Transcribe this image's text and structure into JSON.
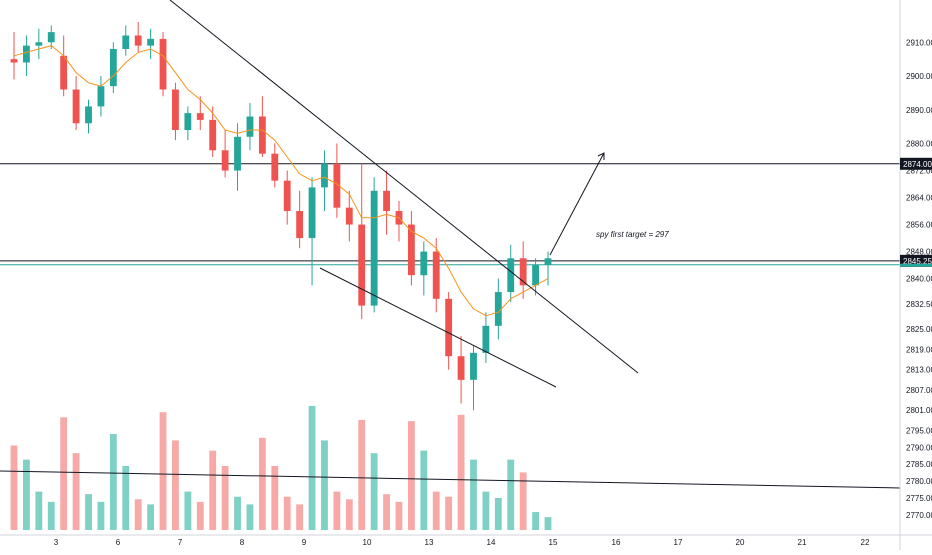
{
  "chart_data": {
    "type": "candlestick",
    "title": "",
    "xlabel": "",
    "ylabel": "",
    "ylim": [
      2767,
      2916
    ],
    "x_ticks": [
      "3",
      "6",
      "7",
      "8",
      "9",
      "10",
      "13",
      "14",
      "15",
      "16",
      "17",
      "20",
      "21",
      "22"
    ],
    "y_ticks": [
      2910.0,
      2900.0,
      2890.0,
      2880.0,
      2872.0,
      2864.0,
      2856.0,
      2848.0,
      2840.0,
      2832.5,
      2825.0,
      2819.0,
      2813.0,
      2807.0,
      2801.0,
      2795.0,
      2790.0,
      2785.0,
      2780.0,
      2775.0,
      2770.0
    ],
    "horizontal_levels": [
      {
        "price": 2874.0,
        "label": "2874.00"
      },
      {
        "price": 2845.25,
        "label": "2845.25"
      }
    ],
    "annotation": "spy first target = 297",
    "ohlc": [
      [
        2905,
        2913,
        2899,
        2904
      ],
      [
        2904,
        2912,
        2900,
        2909
      ],
      [
        2909,
        2914,
        2905,
        2910
      ],
      [
        2910,
        2915,
        2908,
        2913
      ],
      [
        2906,
        2912,
        2894,
        2896
      ],
      [
        2896,
        2900,
        2884,
        2886
      ],
      [
        2886,
        2893,
        2883,
        2891
      ],
      [
        2891,
        2900,
        2888,
        2897
      ],
      [
        2897,
        2910,
        2895,
        2908
      ],
      [
        2908,
        2915,
        2906,
        2912
      ],
      [
        2912,
        2916,
        2907,
        2909
      ],
      [
        2909,
        2914,
        2905,
        2911
      ],
      [
        2911,
        2913,
        2894,
        2896
      ],
      [
        2896,
        2898,
        2881,
        2884
      ],
      [
        2884,
        2891,
        2881,
        2889
      ],
      [
        2889,
        2894,
        2884,
        2887
      ],
      [
        2887,
        2891,
        2876,
        2878
      ],
      [
        2878,
        2884,
        2870,
        2872
      ],
      [
        2872,
        2886,
        2866,
        2882
      ],
      [
        2882,
        2892,
        2878,
        2888
      ],
      [
        2888,
        2894,
        2876,
        2877
      ],
      [
        2877,
        2880,
        2867,
        2869
      ],
      [
        2869,
        2872,
        2856,
        2860
      ],
      [
        2860,
        2866,
        2849,
        2852
      ],
      [
        2852,
        2870,
        2838,
        2867
      ],
      [
        2867,
        2878,
        2860,
        2874
      ],
      [
        2874,
        2880,
        2858,
        2861
      ],
      [
        2861,
        2866,
        2851,
        2856
      ],
      [
        2856,
        2874,
        2828,
        2832
      ],
      [
        2832,
        2870,
        2830,
        2866
      ],
      [
        2866,
        2872,
        2853,
        2860
      ],
      [
        2860,
        2863,
        2851,
        2856
      ],
      [
        2856,
        2860,
        2838,
        2841
      ],
      [
        2841,
        2851,
        2835,
        2848
      ],
      [
        2848,
        2852,
        2830,
        2834
      ],
      [
        2834,
        2836,
        2813,
        2817
      ],
      [
        2817,
        2823,
        2803,
        2810
      ],
      [
        2810,
        2820,
        2801,
        2818
      ],
      [
        2818,
        2830,
        2815,
        2826
      ],
      [
        2826,
        2840,
        2822,
        2836
      ],
      [
        2836,
        2850,
        2833,
        2846
      ],
      [
        2846,
        2851,
        2834,
        2838
      ],
      [
        2838,
        2846,
        2835,
        2844
      ],
      [
        2844,
        2848,
        2838,
        2846
      ]
    ],
    "ma": [
      2906,
      2907,
      2908,
      2909,
      2906,
      2901,
      2898,
      2897,
      2900,
      2904,
      2907,
      2908,
      2906,
      2901,
      2896,
      2893,
      2889,
      2884,
      2883,
      2884,
      2884,
      2881,
      2876,
      2871,
      2869,
      2870,
      2868,
      2865,
      2858,
      2858,
      2859,
      2858,
      2854,
      2852,
      2849,
      2843,
      2836,
      2831,
      2829,
      2830,
      2834,
      2836,
      2838,
      2840
    ],
    "volume": [
      0.66,
      0.55,
      0.3,
      0.22,
      0.88,
      0.6,
      0.28,
      0.22,
      0.75,
      0.5,
      0.24,
      0.2,
      0.92,
      0.7,
      0.3,
      0.22,
      0.62,
      0.5,
      0.26,
      0.2,
      0.72,
      0.5,
      0.26,
      0.2,
      0.97,
      0.7,
      0.3,
      0.24,
      0.86,
      0.6,
      0.28,
      0.22,
      0.85,
      0.62,
      0.3,
      0.26,
      0.9,
      0.55,
      0.3,
      0.25,
      0.55,
      0.45,
      0.14,
      0.1
    ],
    "colors": {
      "up": "#26a69a",
      "down": "#ef5350",
      "up_volume": "#7fd1c6",
      "down_volume": "#f7a9a7",
      "ma": "#f7931a",
      "line": "#131722",
      "price_tag": "#131722"
    }
  }
}
